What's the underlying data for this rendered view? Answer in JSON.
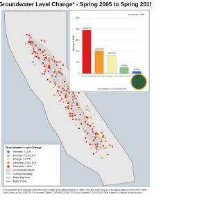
{
  "title": "Groundwater Level Change* - Spring 2005 to Spring 2015",
  "chart_data": {
    "type": "bar",
    "y_label": "Number of Wells",
    "x_label": "Groundwater Level Change (ft)",
    "total_label": "Total Wells: 4,185",
    "categories": [
      "Decrease > 10 ft",
      "Decrease 2.5 to 10 ft",
      "Change < 2.5 ft",
      "Increase 2.5 to 10 ft",
      "Increase > 10 ft"
    ],
    "values": [
      1960,
      1020,
      840,
      270,
      95
    ],
    "value_labels": [
      "1,960 (47%)",
      "1,020 (24%)",
      "840 (20%)",
      "270 (6%)",
      "95 (2%)"
    ],
    "colors": [
      "#e31a1c",
      "#f59a23",
      "#f3f0a8",
      "#7fc97f",
      "#2b6fd6"
    ],
    "ylim": [
      0,
      2500
    ],
    "yticks": [
      0,
      500,
      1000,
      1500,
      2000,
      2500
    ]
  },
  "legend": {
    "title": "Groundwater Level Change",
    "items": [
      {
        "label": "Increase > 10 ft",
        "color": "#2b6fd6",
        "kind": "dot"
      },
      {
        "label": "Increase 2.5 to 10 ft",
        "color": "#7fc97f",
        "kind": "dot"
      },
      {
        "label": "Change < 2.5 ft",
        "color": "#f3f0a8",
        "kind": "dot"
      },
      {
        "label": "Decrease 2.5 to 10 ft",
        "color": "#f59a23",
        "kind": "dot"
      },
      {
        "label": "Decrease > 10 ft",
        "color": "#e31a1c",
        "kind": "dot"
      },
      {
        "label": "Groundwater Basin",
        "color": "#d9d9d9",
        "kind": "box"
      },
      {
        "label": "County Boundary",
        "color": "#888888",
        "kind": "line"
      },
      {
        "label": "Major Highway",
        "color": "#c0392b",
        "kind": "line"
      },
      {
        "label": "Major Canal",
        "color": "#3a7bd5",
        "kind": "line"
      }
    ]
  },
  "footnote": "*Groundwater level changes determined from water level measurements in wells. Map and chart based on available data from the DWR Water Data Library as of 10/15/2015. Document Name: CASGEM_2005_2015.mxd. Updated 10/15/2015. Data subject to change without notice."
}
